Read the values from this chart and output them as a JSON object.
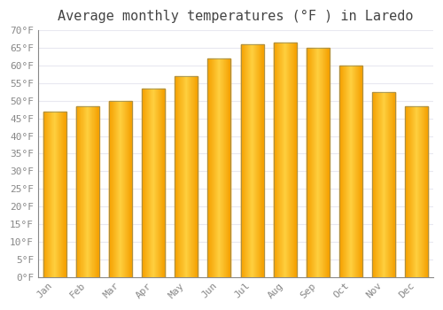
{
  "title": "Average monthly temperatures (°F ) in Laredo",
  "months": [
    "Jan",
    "Feb",
    "Mar",
    "Apr",
    "May",
    "Jun",
    "Jul",
    "Aug",
    "Sep",
    "Oct",
    "Nov",
    "Dec"
  ],
  "values": [
    47,
    48.5,
    50,
    53.5,
    57,
    62,
    66,
    66.5,
    65,
    60,
    52.5,
    48.5
  ],
  "bar_color_center": "#FFD040",
  "bar_color_edge": "#F5A000",
  "bar_edge_color": "#888866",
  "ylim": [
    0,
    70
  ],
  "yticks": [
    0,
    5,
    10,
    15,
    20,
    25,
    30,
    35,
    40,
    45,
    50,
    55,
    60,
    65,
    70
  ],
  "ytick_labels": [
    "0°F",
    "5°F",
    "10°F",
    "15°F",
    "20°F",
    "25°F",
    "30°F",
    "35°F",
    "40°F",
    "45°F",
    "50°F",
    "55°F",
    "60°F",
    "65°F",
    "70°F"
  ],
  "background_color": "#ffffff",
  "grid_color": "#e8e8f0",
  "title_fontsize": 11,
  "tick_fontsize": 8,
  "font_family": "monospace",
  "tick_color": "#888888",
  "title_color": "#444444"
}
